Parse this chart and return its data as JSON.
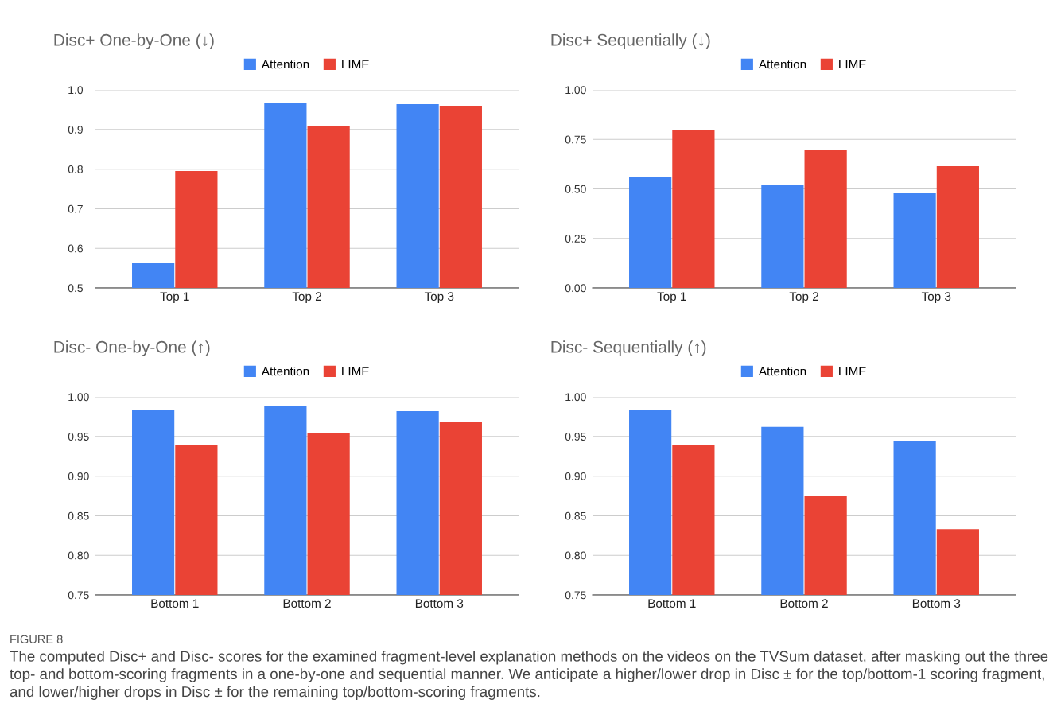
{
  "chart_data": [
    {
      "type": "bar",
      "title": "Disc+ One-by-One (↓)",
      "categories": [
        "Top 1",
        "Top 2",
        "Top 3"
      ],
      "series": [
        {
          "name": "Attention",
          "color": "#4285f4",
          "values": [
            0.562,
            0.966,
            0.964
          ]
        },
        {
          "name": "LIME",
          "color": "#ea4335",
          "values": [
            0.795,
            0.908,
            0.96
          ]
        }
      ],
      "ylim": [
        0.5,
        1.0
      ],
      "yticks": [
        0.5,
        0.6,
        0.7,
        0.8,
        0.9,
        {
          "value": 1.0,
          "label": "1.0"
        }
      ],
      "grid": "y",
      "legend": "top"
    },
    {
      "type": "bar",
      "title": "Disc+ Sequentially (↓)",
      "categories": [
        "Top 1",
        "Top 2",
        "Top 3"
      ],
      "series": [
        {
          "name": "Attention",
          "color": "#4285f4",
          "values": [
            0.562,
            0.518,
            0.478
          ]
        },
        {
          "name": "LIME",
          "color": "#ea4335",
          "values": [
            0.795,
            0.695,
            0.614
          ]
        }
      ],
      "ylim": [
        0,
        1.0
      ],
      "yticks": [
        {
          "value": 0,
          "label": "0.00"
        },
        0.25,
        {
          "value": 0.5,
          "label": "0.50"
        },
        0.75,
        {
          "value": 1.0,
          "label": "1.00"
        }
      ],
      "grid": "y",
      "legend": "top"
    },
    {
      "type": "bar",
      "title": "Disc- One-by-One (↑)",
      "categories": [
        "Bottom 1",
        "Bottom 2",
        "Bottom 3"
      ],
      "series": [
        {
          "name": "Attention",
          "color": "#4285f4",
          "values": [
            0.983,
            0.989,
            0.982
          ]
        },
        {
          "name": "LIME",
          "color": "#ea4335",
          "values": [
            0.939,
            0.954,
            0.968
          ]
        }
      ],
      "ylim": [
        0.75,
        1.0
      ],
      "yticks": [
        0.75,
        {
          "value": 0.8,
          "label": "0.80"
        },
        0.85,
        {
          "value": 0.9,
          "label": "0.90"
        },
        0.95,
        {
          "value": 1.0,
          "label": "1.00"
        }
      ],
      "grid": "y",
      "legend": "top"
    },
    {
      "type": "bar",
      "title": "Disc- Sequentially (↑)",
      "categories": [
        "Bottom 1",
        "Bottom 2",
        "Bottom 3"
      ],
      "series": [
        {
          "name": "Attention",
          "color": "#4285f4",
          "values": [
            0.983,
            0.962,
            0.944
          ]
        },
        {
          "name": "LIME",
          "color": "#ea4335",
          "values": [
            0.939,
            0.875,
            0.833
          ]
        }
      ],
      "ylim": [
        0.75,
        1.0
      ],
      "yticks": [
        0.75,
        {
          "value": 0.8,
          "label": "0.80"
        },
        0.85,
        {
          "value": 0.9,
          "label": "0.90"
        },
        0.95,
        {
          "value": 1.0,
          "label": "1.00"
        }
      ],
      "grid": "y",
      "legend": "top",
      "annotations": [
        "FIGURE 8",
        "The computed Disc+ and Disc- scores for the examined fragment-level explanation methods on the videos on the TVSum dataset, after masking out the three top- and bottom-scoring fragments in a one-by-one and sequential manner. We anticipate a higher/lower drop in Disc ± for the top/bottom-1 scoring fragment, and lower/higher drops in Disc ± for the remaining top/bottom-scoring fragments."
      ]
    }
  ]
}
